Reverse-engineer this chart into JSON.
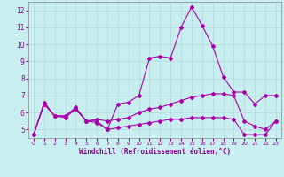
{
  "xlabel": "Windchill (Refroidissement éolien,°C)",
  "background_color": "#c8eef0",
  "grid_color": "#b0d8da",
  "line_color": "#aa00aa",
  "xlim": [
    -0.5,
    23.5
  ],
  "ylim": [
    4.5,
    12.5
  ],
  "yticks": [
    5,
    6,
    7,
    8,
    9,
    10,
    11,
    12
  ],
  "xticks": [
    0,
    1,
    2,
    3,
    4,
    5,
    6,
    7,
    8,
    9,
    10,
    11,
    12,
    13,
    14,
    15,
    16,
    17,
    18,
    19,
    20,
    21,
    22,
    23
  ],
  "series": [
    {
      "x": [
        0,
        1,
        2,
        3,
        4,
        5,
        6,
        7,
        8,
        9,
        10,
        11,
        12,
        13,
        14,
        15,
        16,
        17,
        18,
        19,
        20,
        21,
        22,
        23
      ],
      "y": [
        4.7,
        6.6,
        5.8,
        5.8,
        6.3,
        5.5,
        5.5,
        5.0,
        6.5,
        6.6,
        7.0,
        9.2,
        9.3,
        9.2,
        11.0,
        12.2,
        11.1,
        9.9,
        8.1,
        7.2,
        7.2,
        6.5,
        7.0,
        7.0
      ],
      "marker": "D",
      "markersize": 2,
      "linewidth": 0.8
    },
    {
      "x": [
        0,
        1,
        2,
        3,
        4,
        5,
        6,
        7,
        8,
        9,
        10,
        11,
        12,
        13,
        14,
        15,
        16,
        17,
        18,
        19,
        20,
        21,
        22,
        23
      ],
      "y": [
        4.7,
        6.5,
        5.8,
        5.7,
        6.2,
        5.5,
        5.6,
        5.5,
        5.6,
        5.7,
        6.0,
        6.2,
        6.3,
        6.5,
        6.7,
        6.9,
        7.0,
        7.1,
        7.1,
        7.0,
        5.5,
        5.2,
        5.0,
        5.5
      ],
      "marker": "D",
      "markersize": 2,
      "linewidth": 0.8
    },
    {
      "x": [
        0,
        1,
        2,
        3,
        4,
        5,
        6,
        7,
        8,
        9,
        10,
        11,
        12,
        13,
        14,
        15,
        16,
        17,
        18,
        19,
        20,
        21,
        22,
        23
      ],
      "y": [
        4.7,
        6.5,
        5.8,
        5.8,
        6.2,
        5.5,
        5.4,
        5.0,
        5.1,
        5.2,
        5.3,
        5.4,
        5.5,
        5.6,
        5.6,
        5.7,
        5.7,
        5.7,
        5.7,
        5.6,
        4.7,
        4.7,
        4.7,
        5.5
      ],
      "marker": "D",
      "markersize": 2,
      "linewidth": 0.8
    }
  ]
}
